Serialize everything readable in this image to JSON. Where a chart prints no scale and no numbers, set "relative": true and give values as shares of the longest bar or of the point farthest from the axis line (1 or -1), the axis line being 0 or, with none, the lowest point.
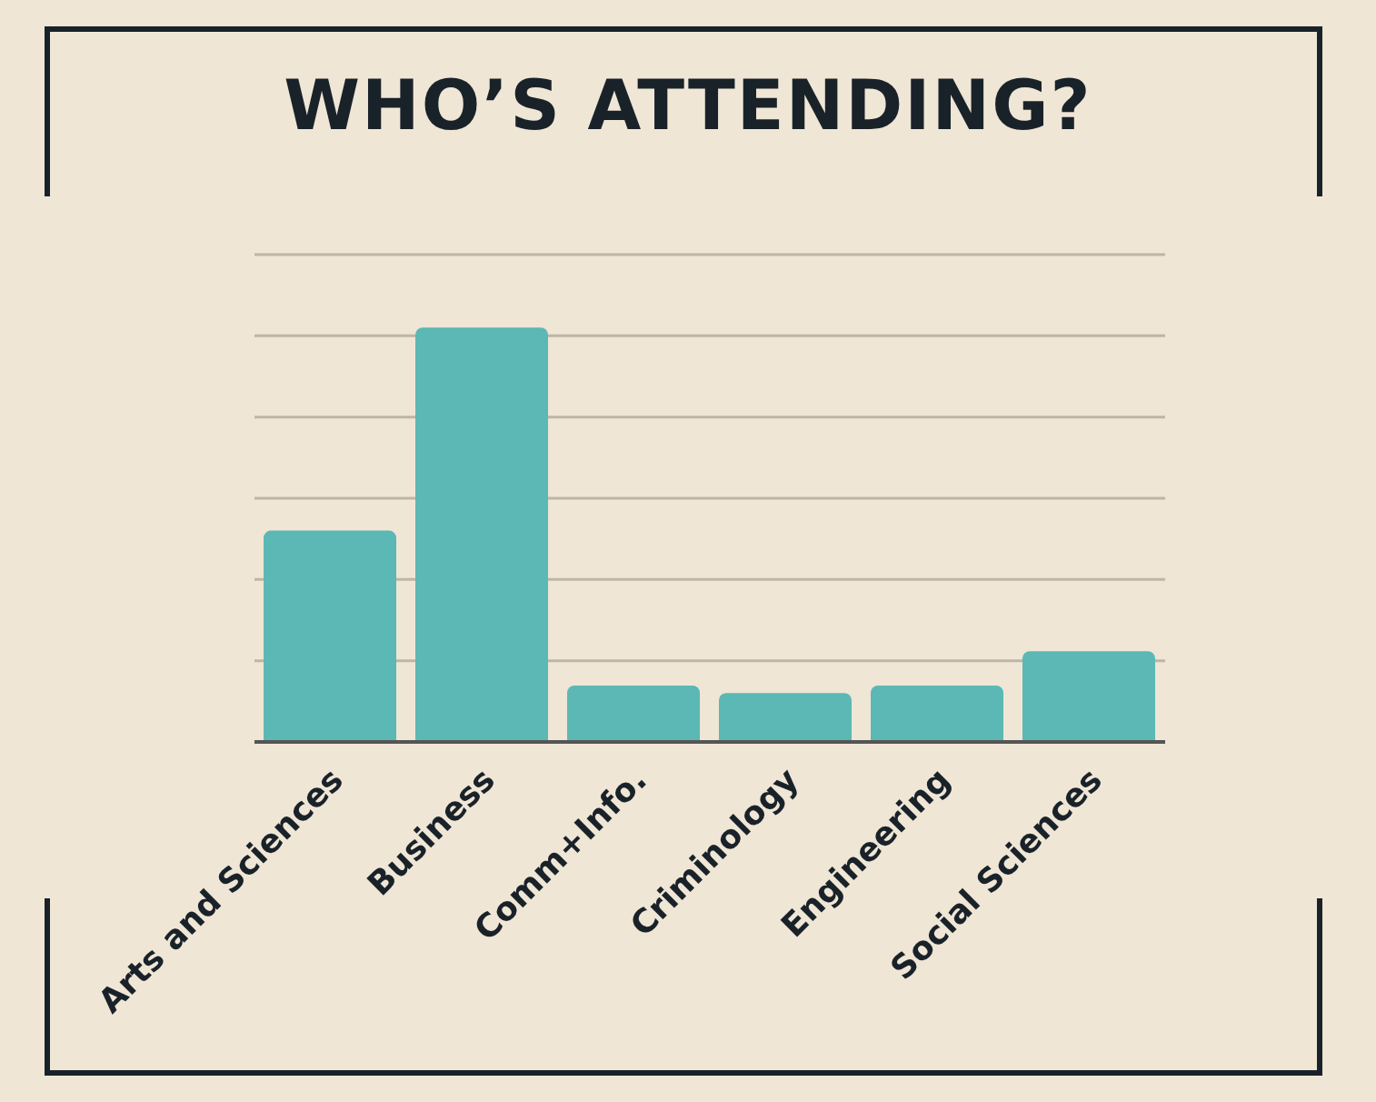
{
  "chart_data": {
    "type": "bar",
    "title": "WHO’S ATTENDING?",
    "categories": [
      "Arts and Sciences",
      "Business",
      "Comm+Info.",
      "Criminology",
      "Engineering",
      "Social Sciences"
    ],
    "values": [
      0.51,
      1,
      0.136,
      0.118,
      0.136,
      0.219
    ],
    "color": "#5bb8b4",
    "relative": true,
    "grid": "y"
  }
}
